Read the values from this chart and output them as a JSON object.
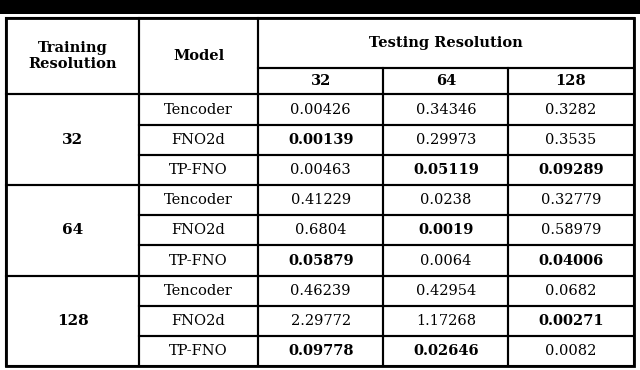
{
  "rows": [
    {
      "train": "32",
      "model": "Tencoder",
      "v32": "0.00426",
      "v64": "0.34346",
      "v128": "0.3282",
      "bold32": false,
      "bold64": false,
      "bold128": false
    },
    {
      "train": "32",
      "model": "FNO2d",
      "v32": "0.00139",
      "v64": "0.29973",
      "v128": "0.3535",
      "bold32": true,
      "bold64": false,
      "bold128": false
    },
    {
      "train": "32",
      "model": "TP-FNO",
      "v32": "0.00463",
      "v64": "0.05119",
      "v128": "0.09289",
      "bold32": false,
      "bold64": true,
      "bold128": true
    },
    {
      "train": "64",
      "model": "Tencoder",
      "v32": "0.41229",
      "v64": "0.0238",
      "v128": "0.32779",
      "bold32": false,
      "bold64": false,
      "bold128": false
    },
    {
      "train": "64",
      "model": "FNO2d",
      "v32": "0.6804",
      "v64": "0.0019",
      "v128": "0.58979",
      "bold32": false,
      "bold64": true,
      "bold128": false
    },
    {
      "train": "64",
      "model": "TP-FNO",
      "v32": "0.05879",
      "v64": "0.0064",
      "v128": "0.04006",
      "bold32": true,
      "bold64": false,
      "bold128": true
    },
    {
      "train": "128",
      "model": "Tencoder",
      "v32": "0.46239",
      "v64": "0.42954",
      "v128": "0.0682",
      "bold32": false,
      "bold64": false,
      "bold128": false
    },
    {
      "train": "128",
      "model": "FNO2d",
      "v32": "2.29772",
      "v64": "1.17268",
      "v128": "0.00271",
      "bold32": false,
      "bold64": false,
      "bold128": true
    },
    {
      "train": "128",
      "model": "TP-FNO",
      "v32": "0.09778",
      "v64": "0.02646",
      "v128": "0.0082",
      "bold32": true,
      "bold64": true,
      "bold128": false
    }
  ],
  "bg_color": "#ffffff",
  "text_color": "#000000",
  "font_size": 10.5,
  "header_font_size": 10.5,
  "page_bar_color": "#000000",
  "page_bar_height": 0.038
}
